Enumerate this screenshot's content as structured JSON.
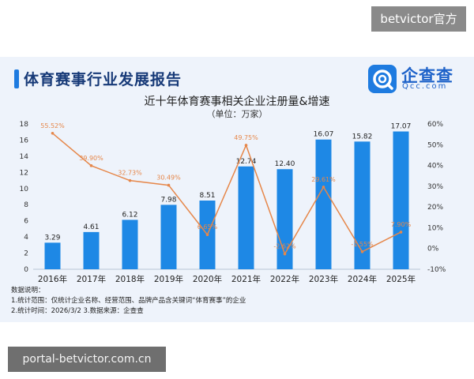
{
  "watermarks": {
    "top_right": "betvictor官方",
    "bottom_left": "portal-betvictor.com.cn"
  },
  "header": {
    "title": "体育赛事行业发展报告"
  },
  "logo": {
    "name": "企查查",
    "sub": "Qcc.com"
  },
  "colors": {
    "bar": "#1e88e5",
    "line": "#e6874a",
    "accent": "#1e7be0"
  },
  "chart_data": {
    "type": "bar",
    "title": "近十年体育赛事相关企业注册量&增速",
    "subtitle": "（单位：万家）",
    "categories": [
      "2016年",
      "2017年",
      "2018年",
      "2019年",
      "2020年",
      "2021年",
      "2022年",
      "2023年",
      "2024年",
      "2025年"
    ],
    "series": [
      {
        "values": [
          3.29,
          4.61,
          6.12,
          7.98,
          8.51,
          12.74,
          12.4,
          16.07,
          15.82,
          17.07
        ],
        "value_labels": [
          "3.29",
          "4.61",
          "6.12",
          "7.98",
          "8.51",
          "12.74",
          "12.40",
          "16.07",
          "15.82",
          "17.07"
        ]
      },
      {
        "type": "line",
        "axis": "right",
        "values": [
          55.52,
          39.9,
          32.73,
          30.49,
          6.65,
          49.75,
          -2.62,
          29.61,
          -1.55,
          7.9
        ],
        "value_labels": [
          "55.52%",
          "39.90%",
          "32.73%",
          "30.49%",
          "6.65%",
          "49.75%",
          "-2.62%",
          "29.61%",
          "-1.55%",
          "7.90%"
        ]
      }
    ],
    "ylim": [
      0,
      18
    ],
    "y_ticks": [
      "0",
      "2",
      "4",
      "6",
      "8",
      "10",
      "12",
      "14",
      "16",
      "18"
    ],
    "y2lim": [
      -10,
      60
    ],
    "y2_ticks": [
      "-10%",
      "0%",
      "10%",
      "20%",
      "30%",
      "40%",
      "50%",
      "60%"
    ]
  },
  "notes": {
    "heading": "数据说明：",
    "line1": "1.统计范围：仅统计企业名称、经营范围、品牌产品含关键词“体育赛事”的企业",
    "line2": "2.统计时间：2026/3/2  3.数据来源：企查查"
  }
}
